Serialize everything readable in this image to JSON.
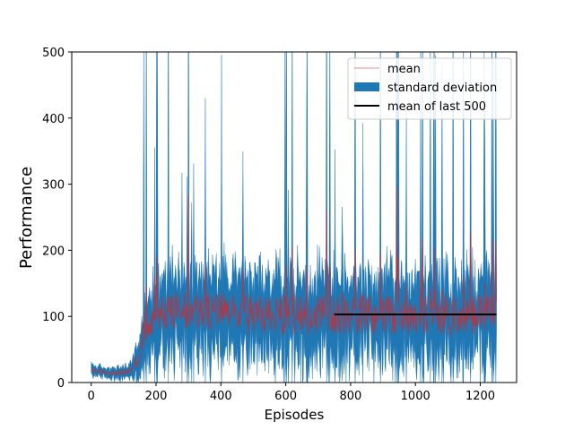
{
  "chart_data": {
    "type": "area",
    "xlabel": "Episodes",
    "ylabel": "Performance",
    "xlim": [
      -60,
      1312
    ],
    "ylim": [
      0,
      500
    ],
    "xticks": [
      0,
      200,
      400,
      600,
      800,
      1000,
      1200
    ],
    "yticks": [
      0,
      100,
      200,
      300,
      400,
      500
    ],
    "grid": false,
    "legend": {
      "placement": "upper right",
      "entries": [
        "mean",
        "standard deviation",
        "mean of last 500"
      ]
    },
    "colors": {
      "mean": "#d62728",
      "standard_deviation": "#1f77b4",
      "mean_of_last_500": "#000000"
    },
    "n_episodes": 1250,
    "mean_profile": {
      "x": [
        0,
        20,
        50,
        90,
        120,
        150,
        170,
        200,
        250,
        300,
        350,
        400,
        500,
        600,
        700,
        800,
        900,
        1000,
        1100,
        1200,
        1250
      ],
      "y": [
        20,
        17,
        15,
        14,
        18,
        40,
        80,
        105,
        110,
        112,
        108,
        105,
        103,
        102,
        104,
        103,
        102,
        103,
        102,
        103,
        100
      ]
    },
    "std_profile": {
      "x": [
        0,
        50,
        120,
        150,
        180,
        250,
        1250
      ],
      "y": [
        8,
        6,
        9,
        25,
        45,
        55,
        55
      ]
    },
    "mean_of_last_500": {
      "x": [
        750,
        1250
      ],
      "y": 103
    }
  }
}
